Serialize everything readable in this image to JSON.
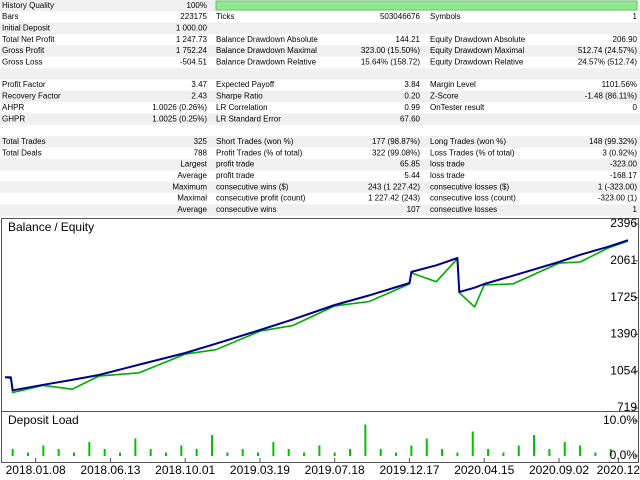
{
  "report": {
    "sections": [
      [
        [
          [
            "History Quality",
            "100%"
          ]
        ],
        [
          [
            "Bars",
            "223175"
          ],
          [
            "Ticks",
            "503046676"
          ],
          [
            "Symbols",
            "1"
          ]
        ],
        [
          [
            "Initial Deposit",
            "1 000.00"
          ]
        ],
        [
          [
            "Total Net Profit",
            "1 247.73"
          ],
          [
            "Balance Drawdown Absolute",
            "144.21"
          ],
          [
            "Equity Drawdown Absolute",
            "206.90"
          ]
        ],
        [
          [
            "Gross Profit",
            "1 752.24"
          ],
          [
            "Balance Drawdown Maximal",
            "323.00 (15.50%)"
          ],
          [
            "Equity Drawdown Maximal",
            "512.74 (24.57%)"
          ]
        ],
        [
          [
            "Gross Loss",
            "-504.51"
          ],
          [
            "Balance Drawdown Relative",
            "15.64% (158.72)"
          ],
          [
            "Equity Drawdown Relative",
            "24.57% (512.74)"
          ]
        ]
      ],
      [
        [
          [
            "Profit Factor",
            "3.47"
          ],
          [
            "Expected Payoff",
            "3.84"
          ],
          [
            "Margin Level",
            "1101.56%"
          ]
        ],
        [
          [
            "Recovery Factor",
            "2.43"
          ],
          [
            "Sharpe Ratio",
            "0.20"
          ],
          [
            "Z-Score",
            "-1.48 (86.11%)"
          ]
        ],
        [
          [
            "AHPR",
            "1.0026 (0.26%)"
          ],
          [
            "LR Correlation",
            "0.99"
          ],
          [
            "OnTester result",
            "0"
          ]
        ],
        [
          [
            "GHPR",
            "1.0025 (0.25%)"
          ],
          [
            "LR Standard Error",
            "67.60"
          ]
        ]
      ],
      [
        [
          [
            "Total Trades",
            "325"
          ],
          [
            "Short Trades (won %)",
            "177 (98.87%)"
          ],
          [
            "Long Trades (won %)",
            "148 (99.32%)"
          ]
        ],
        [
          [
            "Total Deals",
            "788"
          ],
          [
            "Profit Trades (% of total)",
            "322 (99.08%)"
          ],
          [
            "Loss Trades (% of total)",
            "3 (0.92%)"
          ]
        ],
        [
          [
            "Largest"
          ],
          [
            "profit trade",
            "65.85"
          ],
          [
            "loss trade",
            "-323.00"
          ]
        ],
        [
          [
            "Average"
          ],
          [
            "profit trade",
            "5.44"
          ],
          [
            "loss trade",
            "-168.17"
          ]
        ],
        [
          [
            "Maximum"
          ],
          [
            "consecutive wins ($)",
            "243 (1 227.42)"
          ],
          [
            "consecutive losses ($)",
            "1 (-323.00)"
          ]
        ],
        [
          [
            "Maximal"
          ],
          [
            "consecutive profit (count)",
            "1 227.42 (243)"
          ],
          [
            "consecutive loss (count)",
            "-323.00 (1)"
          ]
        ],
        [
          [
            "Average"
          ],
          [
            "consecutive wins",
            "107"
          ],
          [
            "consecutive losses",
            "1"
          ]
        ]
      ]
    ]
  },
  "chart_data": [
    {
      "type": "line",
      "legend_separator": "/",
      "x": [
        0,
        3,
        4,
        20,
        35,
        49,
        70,
        94,
        110,
        133,
        150,
        172,
        190,
        211,
        212,
        225,
        236,
        237,
        245,
        250,
        265,
        289,
        300,
        315,
        325
      ],
      "series": [
        {
          "name": "Balance",
          "color": "#00008b",
          "values": [
            1000,
            1000,
            880,
            930,
            975,
            1020,
            1115,
            1220,
            1305,
            1430,
            1525,
            1658,
            1745,
            1858,
            1959,
            2020,
            2086,
            1776,
            1815,
            1849,
            1925,
            2050,
            2115,
            2190,
            2248
          ]
        },
        {
          "name": "Equity",
          "color": "#00aa00",
          "values": [
            1000,
            990,
            860,
            925,
            890,
            1010,
            1040,
            1210,
            1250,
            1420,
            1470,
            1650,
            1690,
            1850,
            1950,
            1870,
            2080,
            1770,
            1640,
            1840,
            1850,
            2040,
            2050,
            2180,
            2240
          ]
        }
      ],
      "xlim": [
        0,
        325
      ],
      "xticks": [
        {
          "value": 16,
          "label": "2018.01.08"
        },
        {
          "value": 55,
          "label": "2018.06.13"
        },
        {
          "value": 94,
          "label": "2018.10.01"
        },
        {
          "value": 133,
          "label": "2019.03.19"
        },
        {
          "value": 172,
          "label": "2019.07.18"
        },
        {
          "value": 211,
          "label": "2019.12.17"
        },
        {
          "value": 250,
          "label": "2020.04.15"
        },
        {
          "value": 289,
          "label": "2020.09.02"
        },
        {
          "value": 320,
          "label": "2020.12"
        }
      ],
      "ylim": [
        719,
        2396
      ],
      "yticks": [
        2396,
        2061,
        1725,
        1390,
        1054,
        719
      ]
    },
    {
      "type": "bar",
      "title": "Deposit Load",
      "color": "#00c000",
      "x": [
        4,
        12,
        20,
        28,
        36,
        44,
        52,
        60,
        68,
        76,
        84,
        92,
        100,
        108,
        116,
        124,
        132,
        140,
        148,
        156,
        164,
        172,
        180,
        188,
        196,
        204,
        212,
        220,
        228,
        236,
        244,
        252,
        260,
        268,
        276,
        284,
        292,
        300,
        308,
        316
      ],
      "values": [
        2,
        1,
        3,
        2,
        1,
        4,
        2,
        1,
        5,
        2,
        1,
        3,
        2,
        6,
        1,
        2,
        1,
        4,
        2,
        1,
        3,
        1,
        2,
        9,
        2,
        1,
        3,
        5,
        2,
        1,
        7,
        2,
        1,
        3,
        6,
        2,
        4,
        3,
        1,
        2
      ],
      "xlim": [
        0,
        325
      ],
      "ylim": [
        0,
        10
      ],
      "yticks": [
        {
          "value": 10,
          "label": "10.0%"
        },
        {
          "value": 0,
          "label": "0.0%"
        }
      ]
    }
  ]
}
